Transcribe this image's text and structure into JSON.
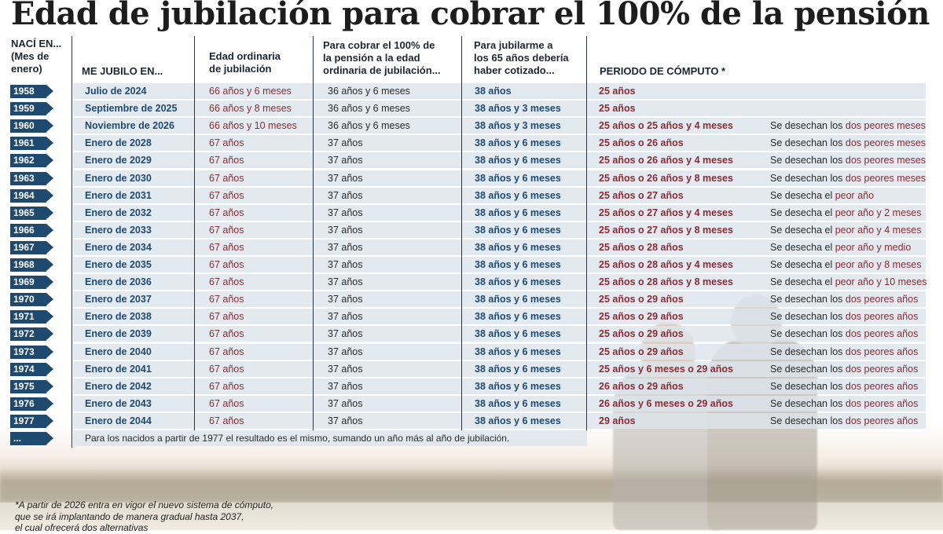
{
  "title": "Edad de jubilación para cobrar el 100% de la  pensión",
  "headers": {
    "naci": [
      "NACÍ EN...",
      "(Mes de",
      "enero)"
    ],
    "jubilo": "ME JUBILO EN...",
    "edad_ordinaria": [
      "Edad ordinaria",
      "de jubilación"
    ],
    "cobrar_100": [
      "Para cobrar el 100% de",
      "la pensión a la edad",
      "ordinaria de jubilación..."
    ],
    "jubilarme_65": [
      "Para jubilarme a",
      "los 65 años debería",
      "haber cotizado..."
    ],
    "periodo": "PERIODO DE CÓMPUTO *"
  },
  "rows": [
    {
      "year": "1958",
      "jubilo": "Julio de 2024",
      "edad": "66 años y 6 meses",
      "cien": "36 años y 6 meses",
      "cot65": "38 años",
      "periodo": "25 años",
      "desecha_pre": "",
      "desecha_hl": ""
    },
    {
      "year": "1959",
      "jubilo": "Septiembre de 2025",
      "edad": "66 años y 8 meses",
      "cien": "36 años y 6 meses",
      "cot65": "38 años y 3 meses",
      "periodo": "25 años",
      "desecha_pre": "",
      "desecha_hl": ""
    },
    {
      "year": "1960",
      "jubilo": "Noviembre de 2026",
      "edad": "66 años y 10 meses",
      "cien": "36 años y 6 meses",
      "cot65": "38 años y 3 meses",
      "periodo": "25 años o 25 años y 4 meses",
      "desecha_pre": "Se desechan los ",
      "desecha_hl": "dos peores meses"
    },
    {
      "year": "1961",
      "jubilo": "Enero de 2028",
      "edad": "67 años",
      "cien": "37 años",
      "cot65": "38 años y 6 meses",
      "periodo": "25 años o 26 años",
      "desecha_pre": "Se desechan los ",
      "desecha_hl": "dos peores meses"
    },
    {
      "year": "1962",
      "jubilo": "Enero de 2029",
      "edad": "67 años",
      "cien": "37 años",
      "cot65": "38 años y 6 meses",
      "periodo": "25 años o 26 años y 4 meses",
      "desecha_pre": "Se desechan los ",
      "desecha_hl": "dos peores meses"
    },
    {
      "year": "1963",
      "jubilo": "Enero de 2030",
      "edad": "67 años",
      "cien": "37 años",
      "cot65": "38 años y 6 meses",
      "periodo": "25 años o 26 años y 8 meses",
      "desecha_pre": "Se desechan los ",
      "desecha_hl": "dos peores meses"
    },
    {
      "year": "1964",
      "jubilo": "Enero de 2031",
      "edad": "67 años",
      "cien": "37 años",
      "cot65": "38 años y 6 meses",
      "periodo": "25 años o 27 años",
      "desecha_pre": "Se desecha el ",
      "desecha_hl": "peor año"
    },
    {
      "year": "1965",
      "jubilo": "Enero de 2032",
      "edad": "67 años",
      "cien": "37 años",
      "cot65": "38 años y 6 meses",
      "periodo": "25 años o 27 años y 4 meses",
      "desecha_pre": "Se desecha el ",
      "desecha_hl": "peor año y 2 meses"
    },
    {
      "year": "1966",
      "jubilo": "Enero de 2033",
      "edad": "67 años",
      "cien": "37 años",
      "cot65": "38 años y 6 meses",
      "periodo": "25 años o 27 años y 8 meses",
      "desecha_pre": "Se desecha el ",
      "desecha_hl": "peor año y 4 meses"
    },
    {
      "year": "1967",
      "jubilo": "Enero de 2034",
      "edad": "67 años",
      "cien": "37 años",
      "cot65": "38 años y 6 meses",
      "periodo": "25 años o 28 años",
      "desecha_pre": "Se desecha el ",
      "desecha_hl": "peor año y medio"
    },
    {
      "year": "1968",
      "jubilo": "Enero de 2035",
      "edad": "67 años",
      "cien": "37 años",
      "cot65": "38 años y 6 meses",
      "periodo": "25 años o 28 años y 4 meses",
      "desecha_pre": "Se desecha el ",
      "desecha_hl": "peor año y 8 meses"
    },
    {
      "year": "1969",
      "jubilo": "Enero de 2036",
      "edad": "67 años",
      "cien": "37 años",
      "cot65": "38 años y 6 meses",
      "periodo": "25 años o 28 años y 8 meses",
      "desecha_pre": "Se desecha el ",
      "desecha_hl": "peor año y 10 meses"
    },
    {
      "year": "1970",
      "jubilo": "Enero de 2037",
      "edad": "67 años",
      "cien": "37 años",
      "cot65": "38 años y 6 meses",
      "periodo": "25 años o 29 años",
      "desecha_pre": "Se desechan los ",
      "desecha_hl": "dos peores años"
    },
    {
      "year": "1971",
      "jubilo": "Enero de 2038",
      "edad": "67 años",
      "cien": "37 años",
      "cot65": "38 años y 6 meses",
      "periodo": "25 años o 29 años",
      "desecha_pre": "Se desechan los ",
      "desecha_hl": "dos peores años"
    },
    {
      "year": "1972",
      "jubilo": "Enero de 2039",
      "edad": "67 años",
      "cien": "37 años",
      "cot65": "38 años y 6 meses",
      "periodo": "25 años o 29 años",
      "desecha_pre": "Se desechan los ",
      "desecha_hl": "dos peores años"
    },
    {
      "year": "1973",
      "jubilo": "Enero de 2040",
      "edad": "67 años",
      "cien": "37 años",
      "cot65": "38 años y 6 meses",
      "periodo": "25 años o 29 años",
      "desecha_pre": "Se desechan los ",
      "desecha_hl": "dos peores años"
    },
    {
      "year": "1974",
      "jubilo": "Enero de 2041",
      "edad": "67 años",
      "cien": "37 años",
      "cot65": "38 años y 6 meses",
      "periodo": "25 años y 6 meses o 29 años",
      "desecha_pre": "Se desechan los ",
      "desecha_hl": "dos peores años"
    },
    {
      "year": "1975",
      "jubilo": "Enero de 2042",
      "edad": "67 años",
      "cien": "37 años",
      "cot65": "38 años y 6 meses",
      "periodo": "26 años o 29 años",
      "desecha_pre": "Se desechan los ",
      "desecha_hl": "dos peores años"
    },
    {
      "year": "1976",
      "jubilo": "Enero de 2043",
      "edad": "67 años",
      "cien": "37 años",
      "cot65": "38 años y 6 meses",
      "periodo": "26 años y 6 meses o 29 años",
      "desecha_pre": "Se desechan los ",
      "desecha_hl": "dos peores años"
    },
    {
      "year": "1977",
      "jubilo": "Enero de 2044",
      "edad": "67 años",
      "cien": "37 años",
      "cot65": "38 años y 6 meses",
      "periodo": "29 años",
      "desecha_pre": "Se desechan los ",
      "desecha_hl": "dos peores años"
    }
  ],
  "last_row": {
    "year": "...",
    "note": "Para los nacidos a partir de 1977 el resultado es el mismo, sumando un año más al año de jubilación."
  },
  "footnote": [
    "*A partir de 2026 entra en vigor el nuevo sistema de cómputo,",
    "que se irá implantando de manera gradual hasta 2037,",
    "el cual ofrecerá dos alternativas"
  ],
  "colors": {
    "navy": "#1f4a70",
    "maroon": "#8a2b35",
    "row_bg": "#dce4ec",
    "text": "#2a2a2a"
  }
}
